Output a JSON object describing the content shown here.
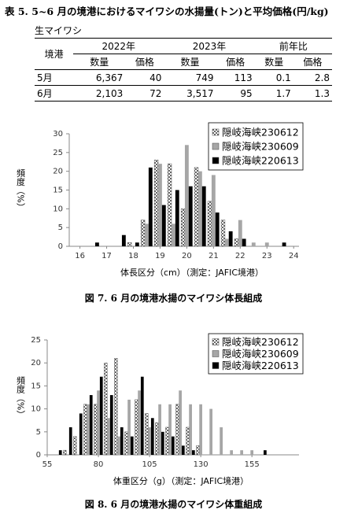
{
  "title": "表 5. 5~6 月の境港におけるマイワシの水揚量(トン)と平均価格(円/kg)",
  "table": {
    "caption": "生マイワシ",
    "header": [
      "境港",
      "2022年",
      "2023年",
      "前年比"
    ],
    "subheader": [
      "数量",
      "価格",
      "数量",
      "価格",
      "数量",
      "価格"
    ],
    "rows": [
      [
        "5月",
        "6,367",
        "40",
        "749",
        "113",
        "0.1",
        "2.8"
      ],
      [
        "6月",
        "2,103",
        "72",
        "3,517",
        "95",
        "1.7",
        "1.3"
      ]
    ]
  },
  "chart_data": [
    {
      "type": "bar",
      "y_label": "頻度（%）",
      "x_label": "体長区分（cm）（測定：JAFIC境港）",
      "x": [
        16.5,
        17,
        17.5,
        18,
        18.5,
        19,
        19.5,
        20,
        20.5,
        21,
        21.5,
        22,
        22.5,
        23,
        23.5
      ],
      "series": [
        {
          "name": "隠岐海峡230612",
          "color": "#888888",
          "pattern": "checker",
          "values": [
            0,
            0,
            0,
            1,
            7,
            23,
            22,
            10,
            21,
            12,
            7,
            2,
            0,
            0,
            0
          ]
        },
        {
          "name": "隠岐海峡230609",
          "color": "#a6a6a6",
          "values": [
            0,
            0,
            0,
            0,
            6,
            22,
            6,
            27,
            20,
            19,
            2,
            7,
            1,
            1,
            0
          ]
        },
        {
          "name": "隠岐海峡220613",
          "color": "#000000",
          "values": [
            1,
            0,
            3,
            1,
            21,
            11,
            15,
            16,
            16,
            9,
            4,
            2,
            0,
            0,
            1
          ]
        }
      ],
      "bin_width": 0.5,
      "xlim": [
        15.6,
        24.2
      ],
      "xticks": [
        16,
        17,
        18,
        19,
        20,
        21,
        22,
        23,
        24
      ],
      "ylim": [
        0,
        30
      ],
      "yticks": [
        0,
        5,
        10,
        15,
        20,
        25,
        30
      ],
      "legend": "upper right"
    },
    {
      "type": "bar",
      "y_label": "頻度（%）",
      "x_label": "体重区分（g）（測定：JAFIC境港）",
      "x": [
        60,
        65,
        70,
        75,
        80,
        85,
        90,
        95,
        100,
        105,
        110,
        115,
        120,
        125,
        130,
        135,
        140,
        145,
        150,
        155,
        160
      ],
      "series": [
        {
          "name": "隠岐海峡230612",
          "color": "#888888",
          "pattern": "checker",
          "values": [
            0,
            1,
            4,
            11,
            11,
            20,
            21,
            5,
            12,
            9,
            7,
            6,
            11,
            6,
            2,
            0,
            0,
            0,
            0,
            0,
            0
          ]
        },
        {
          "name": "隠岐海峡230609",
          "color": "#a6a6a6",
          "values": [
            0,
            0,
            0,
            11,
            14,
            8,
            4,
            12,
            14,
            6,
            11,
            11,
            14,
            11,
            11,
            10,
            6,
            1,
            1,
            1,
            0
          ]
        },
        {
          "name": "隠岐海峡220613",
          "color": "#000000",
          "values": [
            1,
            6,
            9,
            13,
            17,
            13,
            6,
            4,
            17,
            8,
            5,
            4,
            2,
            1,
            0,
            0,
            0,
            0,
            0,
            0,
            1
          ]
        }
      ],
      "bin_width": 5,
      "xlim": [
        55,
        178
      ],
      "xticks": [
        55,
        80,
        105,
        130,
        155
      ],
      "ylim": [
        0,
        25
      ],
      "yticks": [
        0,
        5,
        10,
        15,
        20,
        25
      ],
      "legend": "upper right"
    }
  ],
  "figure_captions": [
    "図 7.  6 月の境港水揚のマイワシ体長組成",
    "図 8.  6 月の境港水揚のマイワシ体重組成"
  ]
}
